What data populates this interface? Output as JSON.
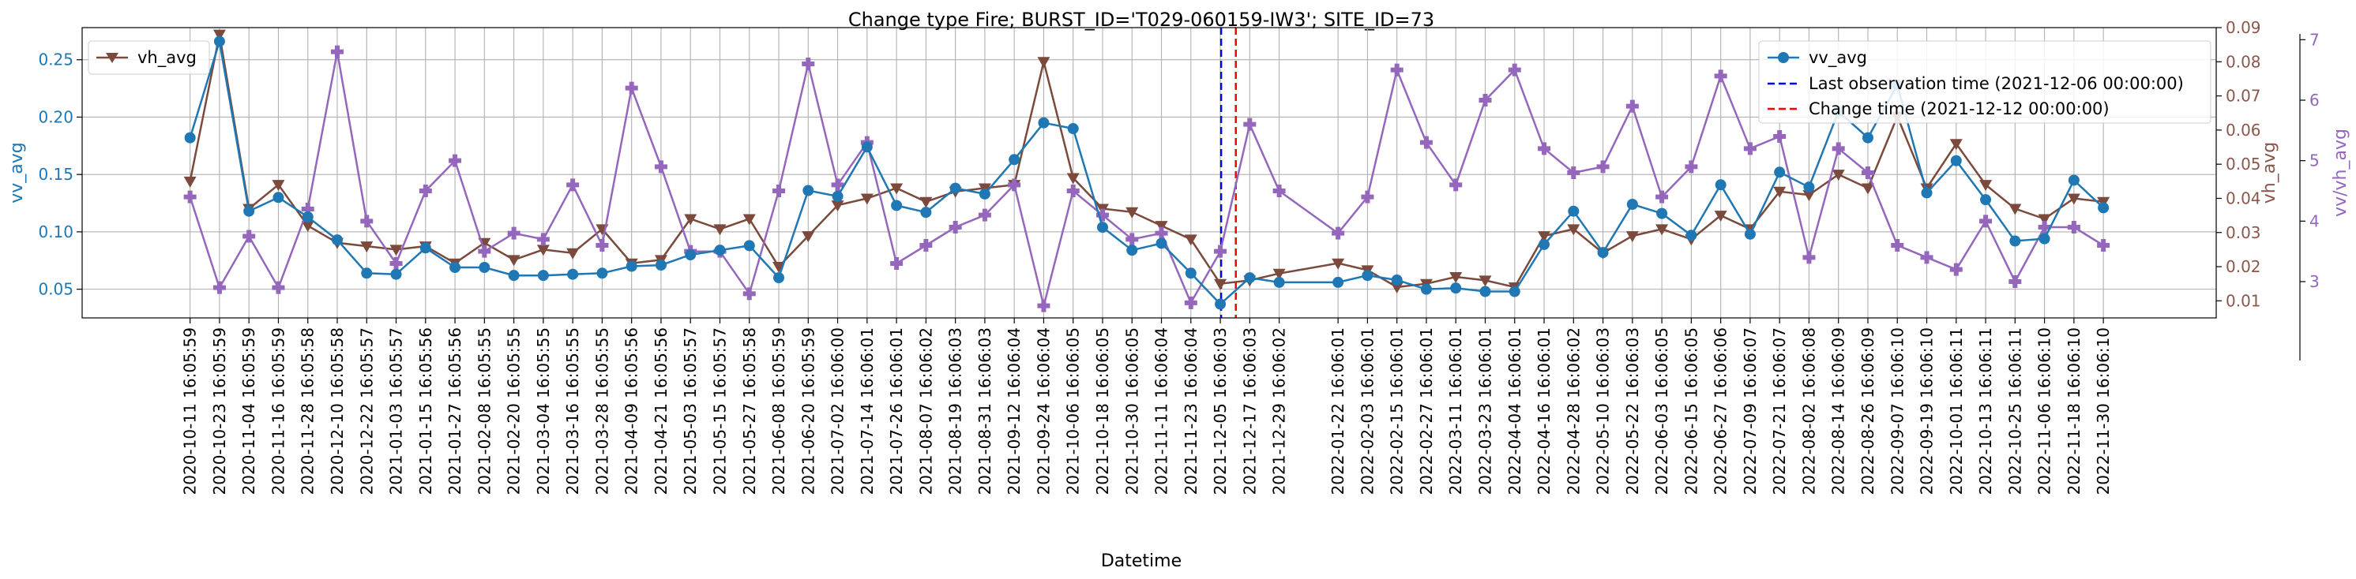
{
  "chart_data": {
    "type": "line",
    "title": "Change type Fire; BURST_ID='T029-060159-IW3'; SITE_ID=73",
    "xlabel": "Datetime",
    "x_tick_labels": [
      "2020-10-11 16:05:59",
      "2020-10-23 16:05:59",
      "2020-11-04 16:05:59",
      "2020-11-16 16:05:59",
      "2020-11-28 16:05:58",
      "2020-12-10 16:05:58",
      "2020-12-22 16:05:57",
      "2021-01-03 16:05:57",
      "2021-01-15 16:05:56",
      "2021-01-27 16:05:56",
      "2021-02-08 16:05:55",
      "2021-02-20 16:05:55",
      "2021-03-04 16:05:55",
      "2021-03-16 16:05:55",
      "2021-03-28 16:05:55",
      "2021-04-09 16:05:56",
      "2021-04-21 16:05:56",
      "2021-05-03 16:05:57",
      "2021-05-15 16:05:57",
      "2021-05-27 16:05:58",
      "2021-06-08 16:05:59",
      "2021-06-20 16:05:59",
      "2021-07-02 16:06:00",
      "2021-07-14 16:06:01",
      "2021-07-26 16:06:01",
      "2021-08-07 16:06:02",
      "2021-08-19 16:06:03",
      "2021-08-31 16:06:03",
      "2021-09-12 16:06:04",
      "2021-09-24 16:06:04",
      "2021-10-06 16:06:05",
      "2021-10-18 16:06:05",
      "2021-10-30 16:06:05",
      "2021-11-11 16:06:04",
      "2021-11-23 16:06:04",
      "2021-12-05 16:06:03",
      "2021-12-17 16:06:03",
      "2021-12-29 16:06:02",
      "2022-01-22 16:06:01",
      "2022-02-03 16:06:01",
      "2022-02-15 16:06:01",
      "2022-02-27 16:06:01",
      "2022-03-11 16:06:01",
      "2022-03-23 16:06:01",
      "2022-04-04 16:06:01",
      "2022-04-16 16:06:01",
      "2022-04-28 16:06:02",
      "2022-05-10 16:06:03",
      "2022-05-22 16:06:03",
      "2022-06-03 16:06:05",
      "2022-06-15 16:06:05",
      "2022-06-27 16:06:06",
      "2022-07-09 16:06:07",
      "2022-07-21 16:06:07",
      "2022-08-02 16:06:08",
      "2022-08-14 16:06:09",
      "2022-08-26 16:06:09",
      "2022-09-07 16:06:10",
      "2022-09-19 16:06:10",
      "2022-10-01 16:06:11",
      "2022-10-13 16:06:11",
      "2022-10-25 16:06:11",
      "2022-11-06 16:06:10",
      "2022-11-18 16:06:10",
      "2022-11-30 16:06:10"
    ],
    "x_tick_days": [
      0,
      12,
      24,
      36,
      48,
      60,
      72,
      84,
      96,
      108,
      120,
      132,
      144,
      156,
      168,
      180,
      192,
      204,
      216,
      228,
      240,
      252,
      264,
      276,
      288,
      300,
      312,
      324,
      336,
      348,
      360,
      372,
      384,
      396,
      408,
      420,
      432,
      444,
      468,
      480,
      492,
      504,
      516,
      528,
      540,
      552,
      564,
      576,
      588,
      600,
      612,
      624,
      636,
      648,
      660,
      672,
      684,
      696,
      708,
      720,
      732,
      744,
      756,
      768,
      780
    ],
    "x_range_days": [
      -44,
      826
    ],
    "vertical_lines": [
      {
        "name": "Last observation time (2021-12-06 00:00:00)",
        "day": 420.33,
        "color": "#0000ff",
        "style": "dashed"
      },
      {
        "name": "Change time (2021-12-12 00:00:00)",
        "day": 426.33,
        "color": "#ff0000",
        "style": "dashed"
      }
    ],
    "axes": [
      {
        "label": "vv_avg",
        "ylim": [
          0.025,
          0.278
        ],
        "ticks": [
          "0.05",
          "0.10",
          "0.15",
          "0.20",
          "0.25"
        ],
        "color": "#1f77b4"
      },
      {
        "label": "vh_avg",
        "ylim": [
          0.005,
          0.09
        ],
        "ticks": [
          "0.01",
          "0.02",
          "0.03",
          "0.04",
          "0.05",
          "0.06",
          "0.07",
          "0.08",
          "0.09"
        ],
        "color": "#8c564b"
      },
      {
        "label": "vv/vh_avg",
        "ylim": [
          2.4,
          7.2
        ],
        "ticks": [
          "3",
          "4",
          "5",
          "6",
          "7"
        ],
        "color": "#9467bd"
      }
    ],
    "series": [
      {
        "name": "vv_avg",
        "axis": 0,
        "color": "#1f77b4",
        "marker": "circle",
        "x_days": [
          0,
          12,
          24,
          36,
          48,
          60,
          72,
          84,
          96,
          108,
          120,
          132,
          144,
          156,
          168,
          180,
          192,
          204,
          216,
          228,
          240,
          252,
          264,
          276,
          288,
          300,
          312,
          324,
          336,
          348,
          360,
          372,
          384,
          396,
          408,
          420,
          432,
          444,
          468,
          480,
          492,
          504,
          516,
          528,
          540,
          552,
          564,
          576,
          588,
          600,
          612,
          624,
          636,
          648,
          660,
          672,
          684,
          696,
          708,
          720,
          732,
          744,
          756,
          768,
          780
        ],
        "values": [
          0.182,
          0.266,
          0.118,
          0.13,
          0.113,
          0.093,
          0.064,
          0.063,
          0.086,
          0.069,
          0.069,
          0.062,
          0.062,
          0.063,
          0.064,
          0.07,
          0.071,
          0.08,
          0.084,
          0.088,
          0.06,
          0.136,
          0.131,
          0.174,
          0.123,
          0.117,
          0.138,
          0.133,
          0.163,
          0.195,
          0.19,
          0.104,
          0.084,
          0.09,
          0.064,
          0.037,
          0.06,
          0.056,
          0.056,
          0.062,
          0.058,
          0.05,
          0.051,
          0.048,
          0.048,
          0.089,
          0.118,
          0.082,
          0.124,
          0.116,
          0.097,
          0.141,
          0.098,
          0.152,
          0.139,
          0.205,
          0.182,
          0.228,
          0.134,
          0.162,
          0.128,
          0.092,
          0.094,
          0.145,
          0.121
        ]
      },
      {
        "name": "vh_avg",
        "axis": 1,
        "color": "#7b4a3c",
        "marker": "triangle-down",
        "x_days": [
          0,
          12,
          24,
          36,
          48,
          60,
          72,
          84,
          96,
          108,
          120,
          132,
          144,
          156,
          168,
          180,
          192,
          204,
          216,
          228,
          240,
          252,
          264,
          276,
          288,
          300,
          312,
          324,
          336,
          348,
          360,
          372,
          384,
          396,
          408,
          420,
          432,
          444,
          468,
          480,
          492,
          504,
          516,
          528,
          540,
          552,
          564,
          576,
          588,
          600,
          612,
          624,
          636,
          648,
          660,
          672,
          684,
          696,
          708,
          720,
          732,
          744,
          756,
          768,
          780
        ],
        "values": [
          0.045,
          0.088,
          0.037,
          0.044,
          0.032,
          0.027,
          0.026,
          0.025,
          0.026,
          0.021,
          0.027,
          0.022,
          0.025,
          0.024,
          0.031,
          0.021,
          0.022,
          0.034,
          0.031,
          0.034,
          0.02,
          0.029,
          0.038,
          0.04,
          0.043,
          0.039,
          0.042,
          0.043,
          0.044,
          0.08,
          0.046,
          0.037,
          0.036,
          0.032,
          0.028,
          0.015,
          0.016,
          0.018,
          0.021,
          0.019,
          0.014,
          0.015,
          0.017,
          0.016,
          0.014,
          0.029,
          0.031,
          0.024,
          0.029,
          0.031,
          0.028,
          0.035,
          0.031,
          0.042,
          0.041,
          0.047,
          0.043,
          0.064,
          0.043,
          0.056,
          0.044,
          0.037,
          0.034,
          0.04,
          0.039
        ]
      },
      {
        "name": "vv/vh_avg",
        "axis": 2,
        "color": "#9467bd",
        "marker": "plus",
        "x_days": [
          0,
          12,
          24,
          36,
          48,
          60,
          72,
          84,
          96,
          108,
          120,
          132,
          144,
          156,
          168,
          180,
          192,
          204,
          216,
          228,
          240,
          252,
          264,
          276,
          288,
          300,
          312,
          324,
          336,
          348,
          360,
          372,
          384,
          396,
          408,
          420,
          432,
          444,
          468,
          480,
          492,
          504,
          516,
          528,
          540,
          552,
          564,
          576,
          588,
          600,
          612,
          624,
          636,
          648,
          660,
          672,
          684,
          696,
          708,
          720,
          732,
          744,
          756,
          768,
          780
        ],
        "values": [
          4.4,
          2.9,
          3.75,
          2.9,
          4.2,
          6.8,
          4.0,
          3.3,
          4.5,
          5.0,
          3.5,
          3.8,
          3.7,
          4.6,
          3.6,
          6.2,
          4.9,
          3.5,
          3.5,
          2.8,
          4.5,
          6.6,
          4.6,
          5.3,
          3.3,
          3.6,
          3.9,
          4.1,
          4.6,
          2.6,
          4.5,
          4.1,
          3.7,
          3.8,
          2.65,
          3.5,
          5.6,
          4.5,
          3.8,
          4.4,
          6.5,
          5.3,
          4.6,
          6.0,
          6.5,
          5.2,
          4.8,
          4.9,
          5.9,
          4.4,
          4.9,
          6.4,
          5.2,
          5.4,
          3.4,
          5.2,
          4.8,
          3.6,
          3.4,
          3.2,
          4.0,
          3.0,
          3.9,
          3.9,
          3.6
        ]
      }
    ],
    "legends": [
      {
        "placement": "top-left",
        "entries": [
          "vh_avg"
        ]
      },
      {
        "placement": "top-right",
        "entries": [
          "vv_avg",
          "Last observation time (2021-12-06 00:00:00)",
          "Change time (2021-12-12 00:00:00)"
        ]
      }
    ],
    "grid": true
  }
}
